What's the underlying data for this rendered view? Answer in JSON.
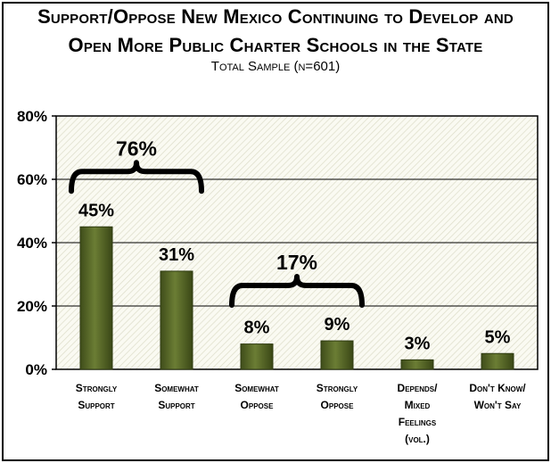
{
  "chart_data": {
    "type": "bar",
    "title_line1": "Support/Oppose New Mexico Continuing to Develop and",
    "title_line2": "Open More Public Charter Schools in the State",
    "subtitle": "Total Sample (n=601)",
    "categories": [
      [
        "Strongly",
        "Support"
      ],
      [
        "Somewhat",
        "Support"
      ],
      [
        "Somewhat",
        "Oppose"
      ],
      [
        "Strongly",
        "Oppose"
      ],
      [
        "Depends/",
        "Mixed",
        "Feelings",
        "(vol.)"
      ],
      [
        "Don't Know/",
        "Won't Say"
      ]
    ],
    "values": [
      45,
      31,
      8,
      9,
      3,
      5
    ],
    "value_labels": [
      "45%",
      "31%",
      "8%",
      "9%",
      "3%",
      "5%"
    ],
    "ylim": [
      0,
      80
    ],
    "yticks": [
      "0%",
      "20%",
      "40%",
      "60%",
      "80%"
    ],
    "grid": true,
    "bar_color": "#5a6b2a",
    "annotations": [
      {
        "label": "76%",
        "from_category": 0,
        "to_category": 1
      },
      {
        "label": "17%",
        "from_category": 2,
        "to_category": 3
      }
    ]
  }
}
